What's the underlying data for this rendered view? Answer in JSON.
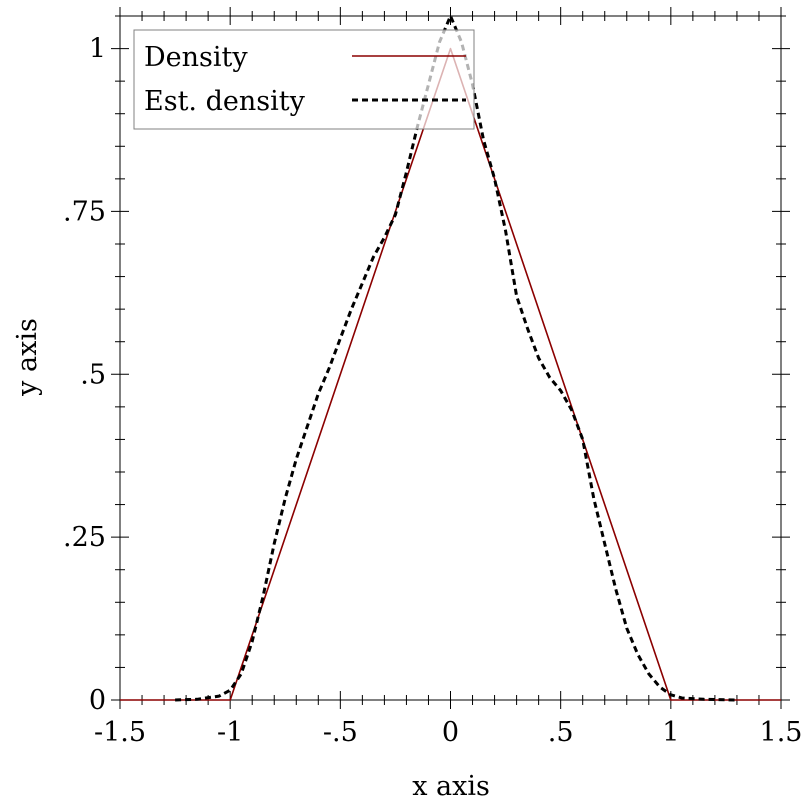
{
  "chart_data": {
    "type": "line",
    "xlabel": "x axis",
    "ylabel": "y axis",
    "xlim": [
      -1.5,
      1.5
    ],
    "ylim": [
      0,
      1.05
    ],
    "x_ticks": [
      {
        "value": -1.5,
        "label": "-1.5"
      },
      {
        "value": -1,
        "label": "-1"
      },
      {
        "value": -0.5,
        "label": "-.5"
      },
      {
        "value": 0,
        "label": "0"
      },
      {
        "value": 0.5,
        "label": ".5"
      },
      {
        "value": 1,
        "label": "1"
      },
      {
        "value": 1.5,
        "label": "1.5"
      }
    ],
    "y_ticks": [
      {
        "value": 0,
        "label": "0"
      },
      {
        "value": 0.25,
        "label": ".25"
      },
      {
        "value": 0.5,
        "label": ".5"
      },
      {
        "value": 0.75,
        "label": ".75"
      },
      {
        "value": 1,
        "label": "1"
      }
    ],
    "legend_position": "top-left",
    "series": [
      {
        "name": "Density",
        "color": "#8b0000",
        "style": "solid",
        "points": [
          [
            -1.5,
            0
          ],
          [
            -1,
            0
          ],
          [
            0,
            1
          ],
          [
            1,
            0
          ],
          [
            1.5,
            0
          ]
        ]
      },
      {
        "name": "Est. density",
        "color": "#000000",
        "style": "dashed",
        "points": [
          [
            -1.25,
            0.0
          ],
          [
            -1.15,
            0.001
          ],
          [
            -1.05,
            0.006
          ],
          [
            -1.0,
            0.015
          ],
          [
            -0.95,
            0.04
          ],
          [
            -0.9,
            0.09
          ],
          [
            -0.85,
            0.16
          ],
          [
            -0.8,
            0.24
          ],
          [
            -0.75,
            0.31
          ],
          [
            -0.7,
            0.37
          ],
          [
            -0.65,
            0.42
          ],
          [
            -0.6,
            0.47
          ],
          [
            -0.55,
            0.51
          ],
          [
            -0.5,
            0.555
          ],
          [
            -0.45,
            0.6
          ],
          [
            -0.4,
            0.64
          ],
          [
            -0.35,
            0.68
          ],
          [
            -0.3,
            0.71
          ],
          [
            -0.25,
            0.745
          ],
          [
            -0.2,
            0.81
          ],
          [
            -0.15,
            0.88
          ],
          [
            -0.1,
            0.945
          ],
          [
            -0.05,
            1.01
          ],
          [
            0.0,
            1.05
          ],
          [
            0.05,
            1.01
          ],
          [
            0.1,
            0.945
          ],
          [
            0.15,
            0.86
          ],
          [
            0.2,
            0.8
          ],
          [
            0.25,
            0.72
          ],
          [
            0.3,
            0.62
          ],
          [
            0.35,
            0.57
          ],
          [
            0.4,
            0.525
          ],
          [
            0.45,
            0.495
          ],
          [
            0.5,
            0.475
          ],
          [
            0.55,
            0.445
          ],
          [
            0.6,
            0.4
          ],
          [
            0.65,
            0.31
          ],
          [
            0.7,
            0.24
          ],
          [
            0.75,
            0.17
          ],
          [
            0.8,
            0.11
          ],
          [
            0.85,
            0.07
          ],
          [
            0.9,
            0.04
          ],
          [
            0.95,
            0.02
          ],
          [
            1.0,
            0.008
          ],
          [
            1.05,
            0.003
          ],
          [
            1.15,
            0.001
          ],
          [
            1.3,
            0.0
          ]
        ]
      }
    ]
  }
}
